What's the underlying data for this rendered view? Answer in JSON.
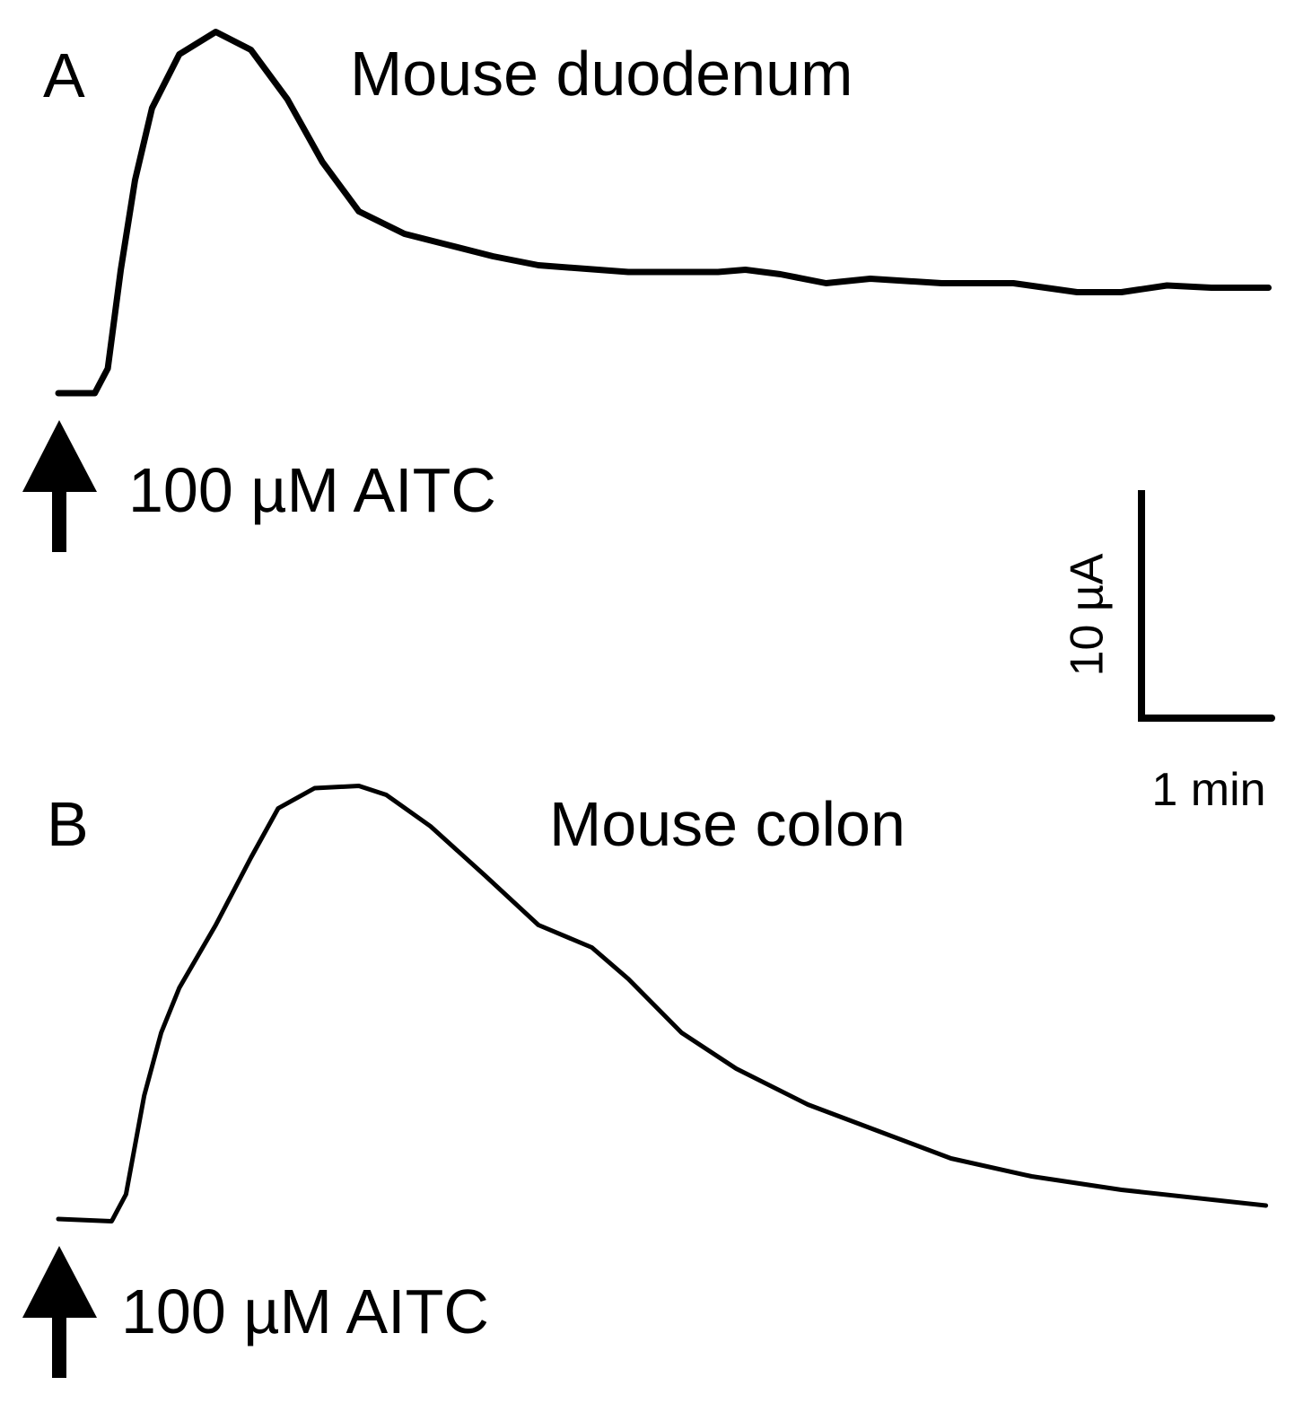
{
  "chart_data": [
    {
      "type": "line",
      "panel": "A",
      "title": "Mouse duodenum",
      "annotation": "100 µM AITC",
      "x": [
        0,
        0.28,
        0.38,
        0.48,
        0.59,
        0.72,
        0.93,
        1.21,
        1.48,
        1.76,
        2.03,
        2.31,
        2.66,
        3.0,
        3.34,
        3.69,
        4.38,
        5.07,
        5.28,
        5.55,
        5.9,
        6.24,
        6.79,
        7.34,
        7.83,
        8.17,
        8.52,
        8.86,
        9.3
      ],
      "values": [
        0,
        0,
        1.1,
        5.5,
        9.5,
        12.7,
        15.1,
        16.1,
        15.3,
        13.1,
        10.3,
        8.1,
        7.1,
        6.6,
        6.1,
        5.7,
        5.4,
        5.4,
        5.5,
        5.3,
        4.9,
        5.1,
        4.9,
        4.9,
        4.5,
        4.5,
        4.8,
        4.7,
        4.7
      ],
      "color": "#000000",
      "xlim": [
        0,
        9.3
      ],
      "ylim": [
        -0.5,
        16.6
      ]
    },
    {
      "type": "line",
      "panel": "B",
      "title": "Mouse colon",
      "annotation": "100 µM AITC",
      "x": [
        0,
        0.41,
        0.52,
        0.66,
        0.79,
        0.93,
        1.21,
        1.48,
        1.69,
        1.97,
        2.31,
        2.52,
        2.86,
        3.28,
        3.69,
        4.1,
        4.38,
        4.79,
        5.21,
        5.76,
        6.31,
        6.86,
        7.48,
        8.17,
        9.28
      ],
      "values": [
        0,
        -0.1,
        1.1,
        5.5,
        8.3,
        10.3,
        13.1,
        16.1,
        18.3,
        19.2,
        19.3,
        18.9,
        17.5,
        15.3,
        13.1,
        12.1,
        10.7,
        8.3,
        6.7,
        5.1,
        3.9,
        2.7,
        1.9,
        1.3,
        0.6
      ],
      "color": "#000000",
      "xlim": [
        0,
        9.3
      ],
      "ylim": [
        -0.5,
        19.8
      ]
    }
  ],
  "scale_bar": {
    "y": {
      "value": 10,
      "label": "10 µA"
    },
    "x": {
      "value": 1,
      "label": "1 min"
    }
  }
}
